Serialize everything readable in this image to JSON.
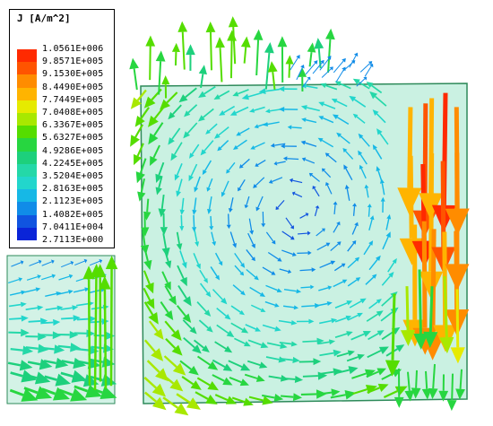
{
  "legend": {
    "title": "J [A/m^2]",
    "ticks": [
      "1.0561E+006",
      "9.8571E+005",
      "9.1530E+005",
      "8.4490E+005",
      "7.7449E+005",
      "7.0408E+005",
      "6.3367E+005",
      "5.6327E+005",
      "4.9286E+005",
      "4.2245E+005",
      "3.5204E+005",
      "2.8163E+005",
      "2.1123E+005",
      "1.4082E+005",
      "7.0411E+004",
      "2.7113E+000"
    ],
    "colors": [
      "#ff2a00",
      "#ff5400",
      "#ff8c00",
      "#ffb400",
      "#e6ea00",
      "#a8e800",
      "#55dd00",
      "#27d640",
      "#1dd07c",
      "#24d8a8",
      "#22d6cc",
      "#16b8e6",
      "#108ce8",
      "#1054e0",
      "#0a24d8"
    ]
  },
  "field_plot": {
    "main_domain_fill": "#b8ecd8",
    "left_domain_fill": "#c4eedd",
    "outline_color": "#2e8a5a",
    "arrow_scale": "field-magnitude"
  }
}
